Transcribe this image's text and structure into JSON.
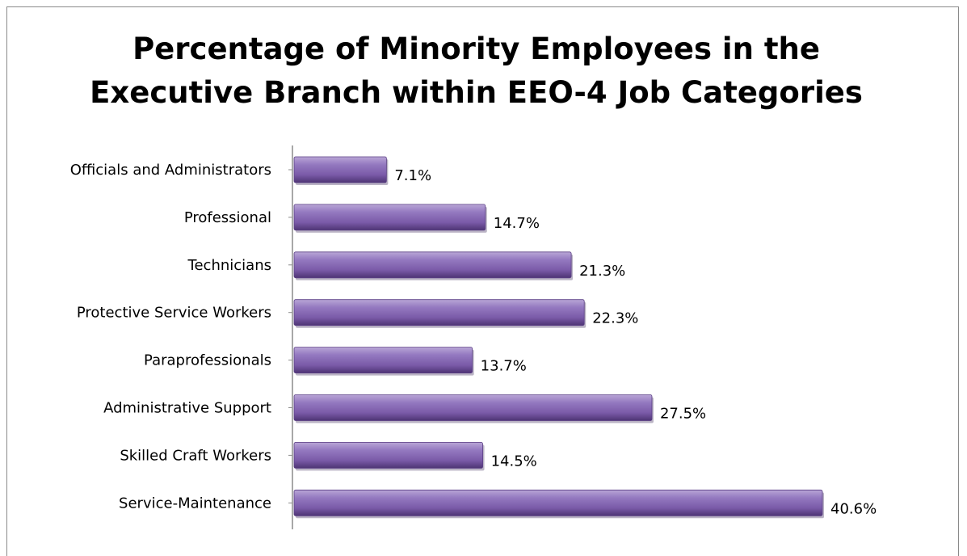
{
  "chart_data": {
    "type": "bar",
    "orientation": "horizontal",
    "title_lines": [
      "Percentage of Minority Employees in the",
      "Executive Branch within EEO-4 Job Categories"
    ],
    "categories": [
      "Officials and Administrators",
      "Professional",
      "Technicians",
      "Protective Service Workers",
      "Paraprofessionals",
      "Administrative Support",
      "Skilled Craft Workers",
      "Service-Maintenance"
    ],
    "values": [
      7.1,
      14.7,
      21.3,
      22.3,
      13.7,
      27.5,
      14.5,
      40.6
    ],
    "value_labels": [
      "7.1%",
      "14.7%",
      "21.3%",
      "22.3%",
      "13.7%",
      "27.5%",
      "14.5%",
      "40.6%"
    ],
    "xlim": [
      0,
      40.6
    ],
    "grid": false,
    "legend": "none",
    "bar_color": "#8064a2"
  }
}
